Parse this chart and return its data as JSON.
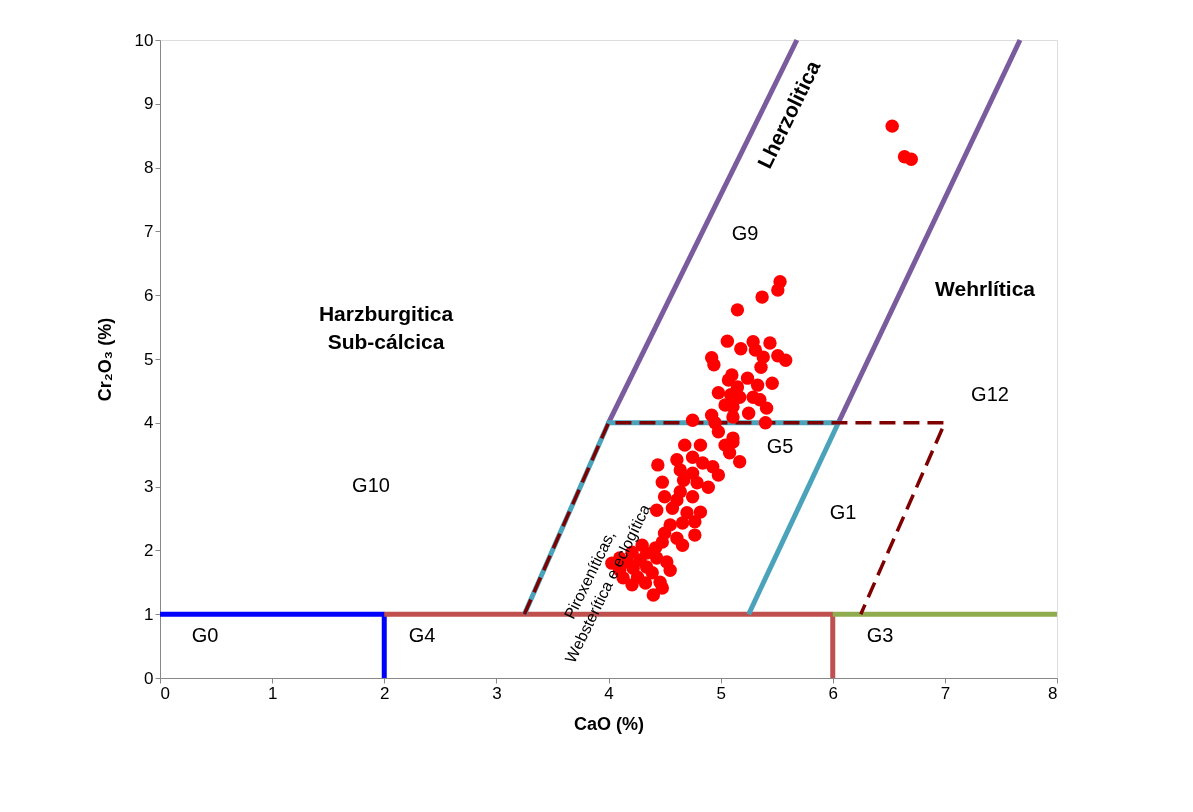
{
  "chart_data": {
    "type": "scatter",
    "xlabel": "CaO (%)",
    "ylabel": "Cr₂O₃ (%)",
    "xlim": [
      0,
      8
    ],
    "xticks": [
      0,
      1,
      2,
      3,
      4,
      5,
      6,
      7,
      8
    ],
    "ylim": [
      0,
      10
    ],
    "yticks": [
      0,
      1,
      2,
      3,
      4,
      5,
      6,
      7,
      8,
      9,
      10
    ],
    "grid": false,
    "series": [
      {
        "type": "line",
        "color": "#0000ff",
        "line_style": "solid",
        "x": [
          0,
          2,
          2
        ],
        "values": [
          1,
          1,
          0
        ]
      },
      {
        "type": "line",
        "color": "#c0504d",
        "line_style": "solid",
        "x": [
          2,
          6,
          6
        ],
        "values": [
          1,
          1,
          0
        ]
      },
      {
        "type": "line",
        "color": "#8fac4f",
        "line_style": "solid",
        "x": [
          6,
          8
        ],
        "values": [
          1,
          1
        ]
      },
      {
        "type": "line",
        "color": "#7a5c9e",
        "line_style": "solid",
        "x": [
          4,
          5.68
        ],
        "values": [
          4,
          10
        ]
      },
      {
        "type": "line",
        "color": "#7a5c9e",
        "line_style": "solid",
        "x": [
          6.05,
          7.67
        ],
        "values": [
          4,
          10
        ]
      },
      {
        "type": "line",
        "color": "#4aa3bb",
        "line_style": "solid",
        "x": [
          5.25,
          6.05
        ],
        "values": [
          1,
          4
        ]
      },
      {
        "type": "line",
        "color": "#4aa3bb",
        "line_style": "solid",
        "x": [
          3.25,
          4,
          6.05
        ],
        "values": [
          1,
          4,
          4
        ]
      },
      {
        "type": "line",
        "color": "#7f0000",
        "line_style": "dashed",
        "x": [
          3.25,
          4,
          7,
          6.25
        ],
        "values": [
          1,
          4,
          4,
          1
        ]
      },
      {
        "color": "#ff0000",
        "marker": "circle",
        "x": [
          6.53,
          6.64,
          6.7,
          5.53,
          5.51,
          5.37,
          5.15,
          5.06,
          5.18,
          5.29,
          5.44,
          5.31,
          5.38,
          5.51,
          5.58,
          4.92,
          4.94,
          5.36,
          5.1,
          5.07,
          5.24,
          5.33,
          5.46,
          5.15,
          4.98,
          5.09,
          5.17,
          5.29,
          5.35,
          5.04,
          5.11,
          5.25,
          5.41,
          4.75,
          4.92,
          4.95,
          5.11,
          5.4,
          4.98,
          5.11,
          4.68,
          4.82,
          5.04,
          5.11,
          5.08,
          5.17,
          4.61,
          4.75,
          4.44,
          4.84,
          4.93,
          4.98,
          4.64,
          4.75,
          4.48,
          4.67,
          4.79,
          4.89,
          4.64,
          4.5,
          4.75,
          4.61,
          4.82,
          4.43,
          4.57,
          4.7,
          4.55,
          4.66,
          4.77,
          4.77,
          4.5,
          4.61,
          4.48,
          4.66,
          4.3,
          4.42,
          4.21,
          4.34,
          4.1,
          4.03,
          4.17,
          4.28,
          4.43,
          4.52,
          4.1,
          4.22,
          4.34,
          4.55,
          4.13,
          4.26,
          4.39,
          4.21,
          4.46,
          4.33,
          4.48,
          4.4
        ],
        "values": [
          8.65,
          8.17,
          8.13,
          6.21,
          6.08,
          5.97,
          5.77,
          5.28,
          5.16,
          5.27,
          5.25,
          5.14,
          5.03,
          5.05,
          4.98,
          5.02,
          4.91,
          4.87,
          4.75,
          4.67,
          4.7,
          4.59,
          4.62,
          4.56,
          4.47,
          4.44,
          4.4,
          4.4,
          4.36,
          4.28,
          4.25,
          4.15,
          4.23,
          4.04,
          4.12,
          4.0,
          4.09,
          4.0,
          3.86,
          3.76,
          3.65,
          3.65,
          3.65,
          3.7,
          3.53,
          3.39,
          3.42,
          3.46,
          3.34,
          3.37,
          3.31,
          3.18,
          3.26,
          3.21,
          3.07,
          3.1,
          3.06,
          2.99,
          2.92,
          2.84,
          2.84,
          2.79,
          2.6,
          2.63,
          2.66,
          2.59,
          2.4,
          2.43,
          2.45,
          2.24,
          2.27,
          2.19,
          2.13,
          2.08,
          2.08,
          2.04,
          1.97,
          1.96,
          1.88,
          1.8,
          1.82,
          1.85,
          1.88,
          1.82,
          1.69,
          1.72,
          1.74,
          1.69,
          1.57,
          1.58,
          1.65,
          1.46,
          1.5,
          1.49,
          1.41,
          1.3
        ]
      }
    ],
    "annotations": [
      "Lherzolitica",
      "Piroxeníticas,\nWebsterítica e eclogítica",
      "Harzburgitica\nSub-cálcica",
      "Wehrlítica",
      "G9",
      "G12",
      "G5",
      "G1",
      "G10",
      "G0",
      "G4",
      "G3"
    ]
  }
}
